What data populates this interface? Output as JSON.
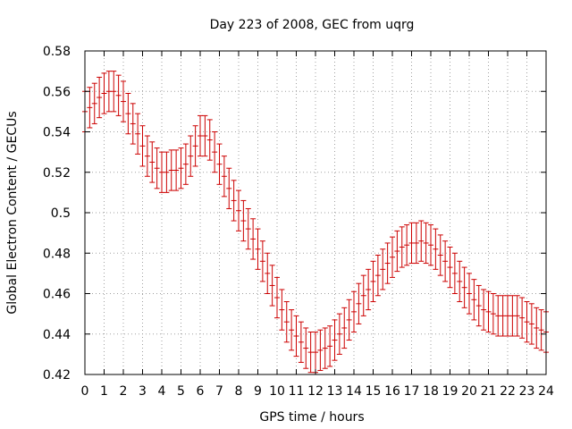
{
  "chart_data": {
    "type": "scatter",
    "title": "Day 223 of 2008, GEC from uqrg",
    "xlabel": "GPS time / hours",
    "ylabel": "Global Electron Content / GECUs",
    "xlim": [
      0,
      24
    ],
    "ylim": [
      0.42,
      0.58
    ],
    "xticks": [
      "0",
      "1",
      "2",
      "3",
      "4",
      "5",
      "6",
      "7",
      "8",
      "9",
      "10",
      "11",
      "12",
      "13",
      "14",
      "15",
      "16",
      "17",
      "18",
      "19",
      "20",
      "21",
      "22",
      "23",
      "24"
    ],
    "yticks": [
      "0.42",
      "0.44",
      "0.46",
      "0.48",
      "0.5",
      "0.52",
      "0.54",
      "0.56",
      "0.58"
    ],
    "grid": true,
    "legend": "none",
    "color": "#cc0000",
    "error_bar_halfwidth": 0.01,
    "x": [
      0,
      0.25,
      0.5,
      0.75,
      1,
      1.25,
      1.5,
      1.75,
      2,
      2.25,
      2.5,
      2.75,
      3,
      3.25,
      3.5,
      3.75,
      4,
      4.25,
      4.5,
      4.75,
      5,
      5.25,
      5.5,
      5.75,
      6,
      6.25,
      6.5,
      6.75,
      7,
      7.25,
      7.5,
      7.75,
      8,
      8.25,
      8.5,
      8.75,
      9,
      9.25,
      9.5,
      9.75,
      10,
      10.25,
      10.5,
      10.75,
      11,
      11.25,
      11.5,
      11.75,
      12,
      12.25,
      12.5,
      12.75,
      13,
      13.25,
      13.5,
      13.75,
      14,
      14.25,
      14.5,
      14.75,
      15,
      15.25,
      15.5,
      15.75,
      16,
      16.25,
      16.5,
      16.75,
      17,
      17.25,
      17.5,
      17.75,
      18,
      18.25,
      18.5,
      18.75,
      19,
      19.25,
      19.5,
      19.75,
      20,
      20.25,
      20.5,
      20.75,
      21,
      21.25,
      21.5,
      21.75,
      22,
      22.25,
      22.5,
      22.75,
      23,
      23.25,
      23.5,
      23.75,
      24
    ],
    "y": [
      0.55,
      0.552,
      0.554,
      0.557,
      0.559,
      0.56,
      0.56,
      0.558,
      0.555,
      0.549,
      0.544,
      0.539,
      0.533,
      0.528,
      0.525,
      0.522,
      0.52,
      0.52,
      0.521,
      0.521,
      0.522,
      0.524,
      0.528,
      0.533,
      0.538,
      0.538,
      0.536,
      0.53,
      0.524,
      0.518,
      0.512,
      0.506,
      0.501,
      0.496,
      0.492,
      0.487,
      0.482,
      0.476,
      0.47,
      0.464,
      0.458,
      0.452,
      0.446,
      0.442,
      0.439,
      0.436,
      0.433,
      0.431,
      0.431,
      0.432,
      0.433,
      0.434,
      0.437,
      0.44,
      0.443,
      0.447,
      0.451,
      0.455,
      0.459,
      0.462,
      0.466,
      0.469,
      0.472,
      0.475,
      0.478,
      0.481,
      0.483,
      0.484,
      0.485,
      0.485,
      0.486,
      0.485,
      0.484,
      0.482,
      0.479,
      0.476,
      0.473,
      0.47,
      0.466,
      0.463,
      0.46,
      0.457,
      0.454,
      0.452,
      0.451,
      0.45,
      0.449,
      0.449,
      0.449,
      0.449,
      0.449,
      0.448,
      0.446,
      0.445,
      0.443,
      0.442,
      0.441
    ]
  }
}
